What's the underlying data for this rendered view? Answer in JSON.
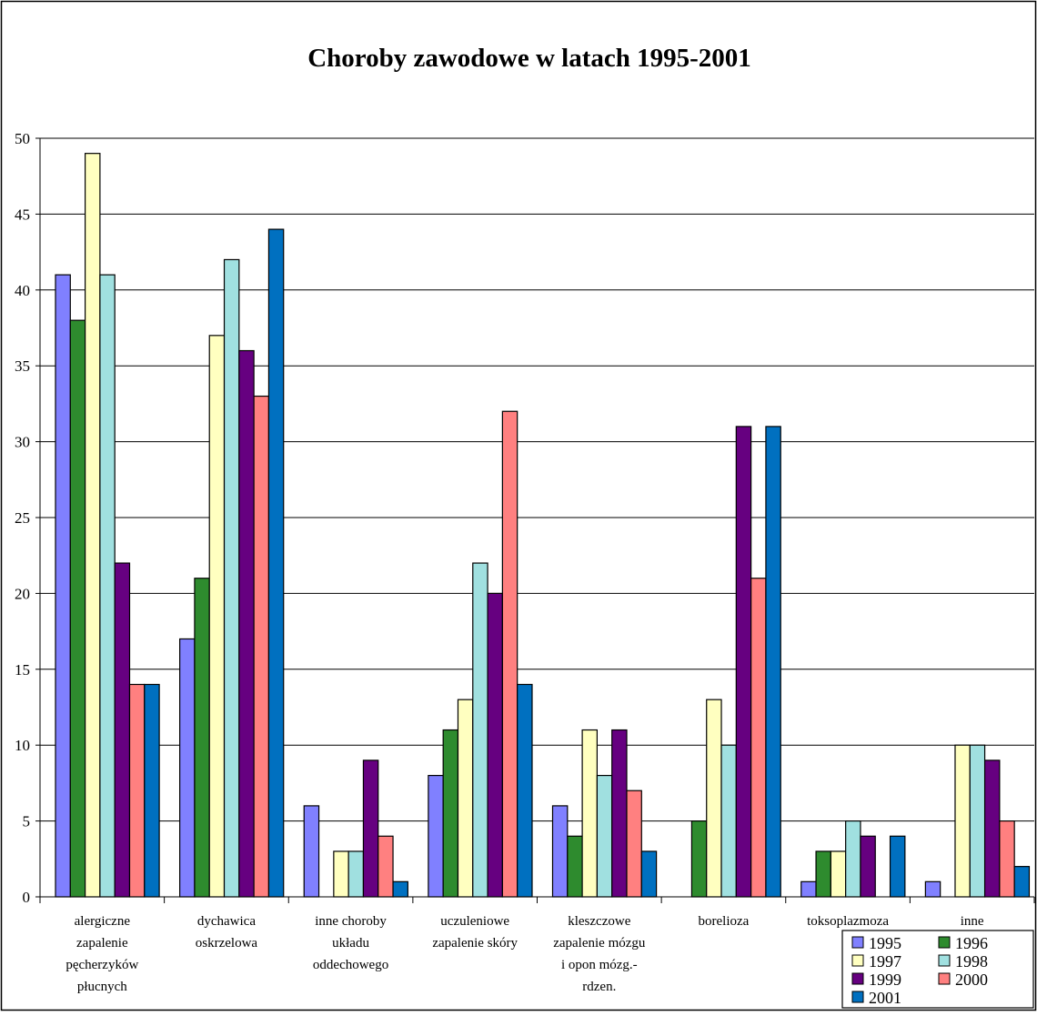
{
  "chart_data": {
    "type": "bar",
    "title": "Choroby zawodowe w latach 1995-2001",
    "xlabel": "",
    "ylabel": "",
    "ylim": [
      0,
      50
    ],
    "yticks": [
      "0",
      "5",
      "10",
      "15",
      "20",
      "25",
      "30",
      "35",
      "40",
      "45",
      "50"
    ],
    "grid": true,
    "legend_position": "bottom-right",
    "categories": [
      [
        "alergiczne",
        "zapalenie",
        "pęcherzyków",
        "płucnych"
      ],
      [
        "dychawica",
        "oskrzelowa"
      ],
      [
        "inne choroby",
        "układu",
        "oddechowego"
      ],
      [
        "uczuleniowe",
        "zapalenie skóry"
      ],
      [
        "kleszczowe",
        "zapalenie mózgu",
        "i opon mózg.-",
        "rdzen."
      ],
      [
        "borelioza"
      ],
      [
        "toksoplazmoza"
      ],
      [
        "inne"
      ]
    ],
    "series": [
      {
        "name": "1995",
        "color": "#8080ff",
        "values": [
          41,
          17,
          6,
          8,
          6,
          0,
          1,
          1
        ]
      },
      {
        "name": "1996",
        "color": "#2e8b2e",
        "values": [
          38,
          21,
          0,
          11,
          4,
          5,
          3,
          0
        ]
      },
      {
        "name": "1997",
        "color": "#ffffc0",
        "values": [
          49,
          37,
          3,
          13,
          11,
          13,
          3,
          10
        ]
      },
      {
        "name": "1998",
        "color": "#a0e0e0",
        "values": [
          41,
          42,
          3,
          22,
          8,
          10,
          5,
          10
        ]
      },
      {
        "name": "1999",
        "color": "#660080",
        "values": [
          22,
          36,
          9,
          20,
          11,
          31,
          4,
          9
        ]
      },
      {
        "name": "2000",
        "color": "#ff8080",
        "values": [
          14,
          33,
          4,
          32,
          7,
          21,
          0,
          5
        ]
      },
      {
        "name": "2001",
        "color": "#0070c0",
        "values": [
          14,
          44,
          1,
          14,
          3,
          31,
          4,
          2
        ]
      }
    ]
  }
}
